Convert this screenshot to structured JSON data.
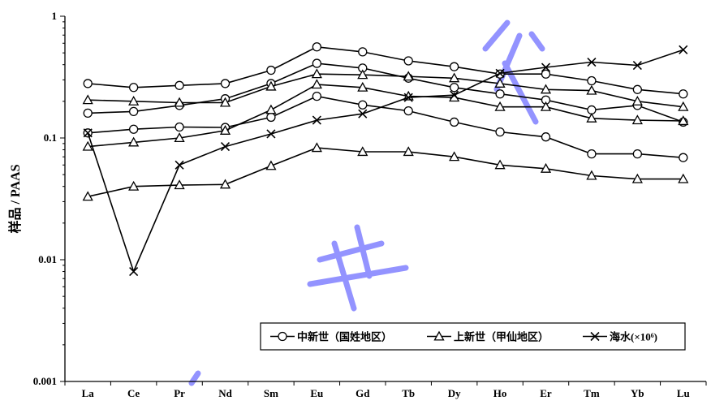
{
  "chart_data": {
    "type": "line",
    "title": "",
    "xlabel": "",
    "ylabel": "样品 / PAAS",
    "yscale": "log",
    "ylim": [
      0.001,
      1
    ],
    "yticks": [
      {
        "value": 0.001,
        "label": "0.001"
      },
      {
        "value": 0.01,
        "label": "0.01"
      },
      {
        "value": 0.1,
        "label": "0.1"
      },
      {
        "value": 1,
        "label": "1"
      }
    ],
    "categories": [
      "La",
      "Ce",
      "Pr",
      "Nd",
      "Sm",
      "Eu",
      "Gd",
      "Tb",
      "Dy",
      "Ho",
      "Er",
      "Tm",
      "Yb",
      "Lu"
    ],
    "legend": {
      "placement": "bottom-right",
      "entries": [
        {
          "label": "中新世（国姓地区）",
          "marker": "circle"
        },
        {
          "label": "上新世（甲仙地区）",
          "marker": "triangle"
        },
        {
          "label": "海水(×10⁶)",
          "marker": "x"
        }
      ]
    },
    "series": [
      {
        "group": 0,
        "marker": "circle",
        "values": [
          0.28,
          0.26,
          0.27,
          0.28,
          0.36,
          0.56,
          0.51,
          0.43,
          0.385,
          0.335,
          0.335,
          0.295,
          0.25,
          0.23
        ]
      },
      {
        "group": 0,
        "marker": "circle",
        "values": [
          0.16,
          0.165,
          0.185,
          0.21,
          0.28,
          0.41,
          0.375,
          0.31,
          0.26,
          0.23,
          0.205,
          0.17,
          0.185,
          0.135
        ]
      },
      {
        "group": 0,
        "marker": "circle",
        "values": [
          0.11,
          0.118,
          0.123,
          0.122,
          0.148,
          0.22,
          0.187,
          0.167,
          0.135,
          0.112,
          0.102,
          0.074,
          0.074,
          0.069
        ]
      },
      {
        "group": 1,
        "marker": "triangle",
        "values": [
          0.205,
          0.2,
          0.195,
          0.195,
          0.265,
          0.335,
          0.33,
          0.32,
          0.31,
          0.28,
          0.25,
          0.245,
          0.2,
          0.18
        ]
      },
      {
        "group": 1,
        "marker": "triangle",
        "values": [
          0.085,
          0.092,
          0.1,
          0.115,
          0.17,
          0.275,
          0.26,
          0.22,
          0.215,
          0.18,
          0.18,
          0.145,
          0.14,
          0.138
        ]
      },
      {
        "group": 1,
        "marker": "triangle",
        "values": [
          0.033,
          0.04,
          0.041,
          0.0415,
          0.059,
          0.083,
          0.077,
          0.077,
          0.07,
          0.06,
          0.056,
          0.049,
          0.046,
          0.046
        ]
      },
      {
        "group": 2,
        "marker": "x",
        "values": [
          0.11,
          0.008,
          0.06,
          0.085,
          0.108,
          0.14,
          0.158,
          0.215,
          0.225,
          0.34,
          0.38,
          0.42,
          0.395,
          0.53
        ]
      }
    ]
  }
}
